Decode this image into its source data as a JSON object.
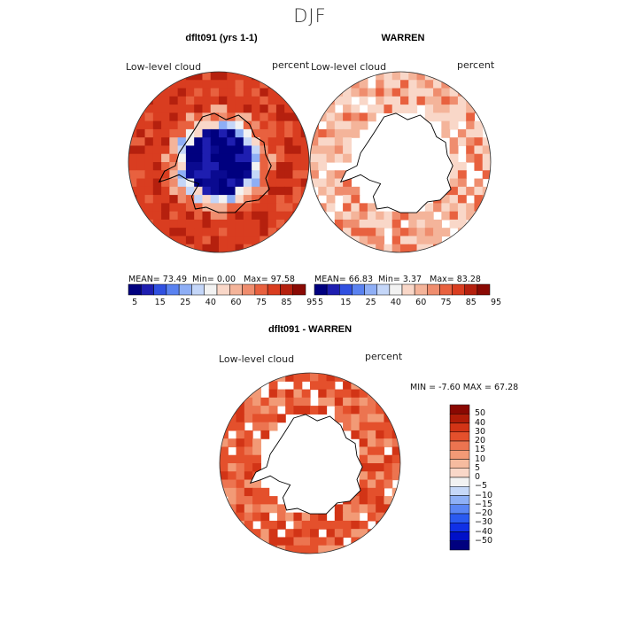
{
  "figure": {
    "season": "DJF"
  },
  "panels": [
    {
      "title": "dflt091 (yrs 1-1)",
      "field": "Low-level cloud",
      "units": "percent",
      "stats": {
        "mean_label": "MEAN=",
        "mean": "73.49",
        "min_label": "Min=",
        "min": "0.00",
        "max_label": "Max=",
        "max": "97.58"
      }
    },
    {
      "title": "WARREN",
      "field": "Low-level cloud",
      "units": "percent",
      "stats": {
        "mean_label": "MEAN=",
        "mean": "66.83",
        "min_label": "Min=",
        "min": "3.37",
        "max_label": "Max=",
        "max": "83.28"
      }
    }
  ],
  "difference": {
    "title": "dflt091 - WARREN",
    "field": "Low-level cloud",
    "units": "percent",
    "stats": {
      "min_label": "MIN =",
      "min": "-7.60",
      "max_label": "MAX =",
      "max": "67.28"
    }
  },
  "chart_data": [
    {
      "type": "heatmap",
      "projection": "south-polar-stereographic",
      "title": "dflt091 (yrs 1-1)",
      "field": "Low-level cloud",
      "units": "percent",
      "colorbar": {
        "orientation": "horizontal",
        "colors": [
          "#00007f",
          "#1e1eb0",
          "#3050e0",
          "#5a82f0",
          "#8eaef5",
          "#c4d6f8",
          "#f2f2f2",
          "#f9d7c8",
          "#f4b49a",
          "#ef8d6e",
          "#e8613f",
          "#d93d20",
          "#b5200e",
          "#8a0a04"
        ],
        "tick_labels": [
          "5",
          "15",
          "25",
          "40",
          "60",
          "75",
          "85",
          "95"
        ]
      },
      "summary": {
        "mean": 73.49,
        "min": 0.0,
        "max": 97.58
      }
    },
    {
      "type": "heatmap",
      "projection": "south-polar-stereographic",
      "title": "WARREN",
      "field": "Low-level cloud",
      "units": "percent",
      "colorbar": {
        "orientation": "horizontal",
        "colors": [
          "#00007f",
          "#1e1eb0",
          "#3050e0",
          "#5a82f0",
          "#8eaef5",
          "#c4d6f8",
          "#f2f2f2",
          "#f9d7c8",
          "#f4b49a",
          "#ef8d6e",
          "#e8613f",
          "#d93d20",
          "#b5200e",
          "#8a0a04"
        ],
        "tick_labels": [
          "5",
          "15",
          "25",
          "40",
          "60",
          "75",
          "85",
          "95"
        ]
      },
      "summary": {
        "mean": 66.83,
        "min": 3.37,
        "max": 83.28
      }
    },
    {
      "type": "heatmap",
      "projection": "south-polar-stereographic",
      "title": "dflt091 - WARREN",
      "field": "Low-level cloud",
      "units": "percent",
      "colorbar": {
        "orientation": "vertical",
        "colors": [
          "#00007f",
          "#0010c8",
          "#1030e6",
          "#2a5af0",
          "#5a86f4",
          "#8eb0f6",
          "#c6d8f8",
          "#f2f2f2",
          "#f9d7c8",
          "#f6bb9f",
          "#f29a76",
          "#ec7450",
          "#e4502c",
          "#d23416",
          "#b01c08",
          "#8a0802"
        ],
        "tick_labels": [
          "50",
          "40",
          "30",
          "20",
          "15",
          "10",
          "5",
          "0",
          "-5",
          "-10",
          "-15",
          "-20",
          "-30",
          "-40",
          "-50"
        ]
      },
      "summary": {
        "min": -7.6,
        "max": 67.28
      }
    }
  ],
  "colors": {
    "land_outline": "#000000",
    "missing": "#ffffff",
    "map_border": "#333333"
  }
}
